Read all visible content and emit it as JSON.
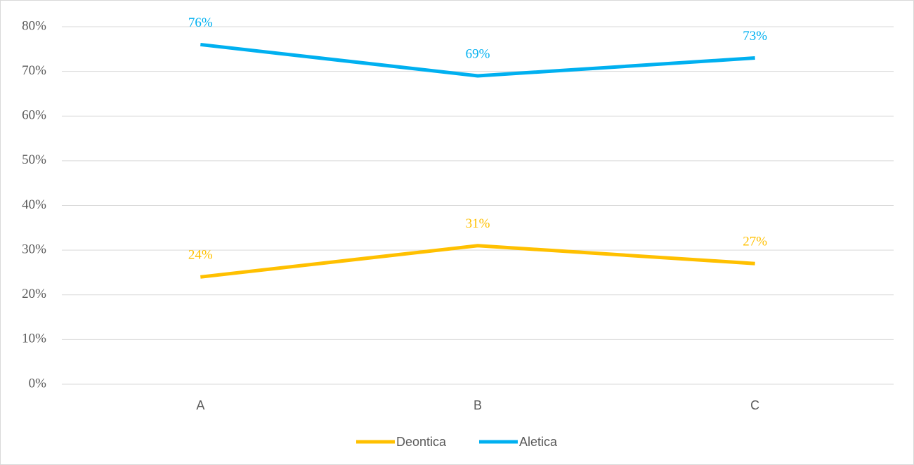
{
  "chart_data": {
    "type": "line",
    "categories": [
      "A",
      "B",
      "C"
    ],
    "series": [
      {
        "name": "Deontica",
        "color": "#FFC000",
        "values": [
          24,
          31,
          27
        ],
        "value_labels": [
          "24%",
          "31%",
          "27%"
        ]
      },
      {
        "name": "Aletica",
        "color": "#00B0F0",
        "values": [
          76,
          69,
          73
        ],
        "value_labels": [
          "76%",
          "69%",
          "73%"
        ]
      }
    ],
    "ylim": [
      0,
      80
    ],
    "yticks": [
      {
        "value": 0,
        "label": "0%"
      },
      {
        "value": 10,
        "label": "10%"
      },
      {
        "value": 20,
        "label": "20%"
      },
      {
        "value": 30,
        "label": "30%"
      },
      {
        "value": 40,
        "label": "40%"
      },
      {
        "value": 50,
        "label": "50%"
      },
      {
        "value": 60,
        "label": "60%"
      },
      {
        "value": 70,
        "label": "70%"
      },
      {
        "value": 80,
        "label": "80%"
      }
    ],
    "grid": true,
    "legend": "bottom"
  }
}
